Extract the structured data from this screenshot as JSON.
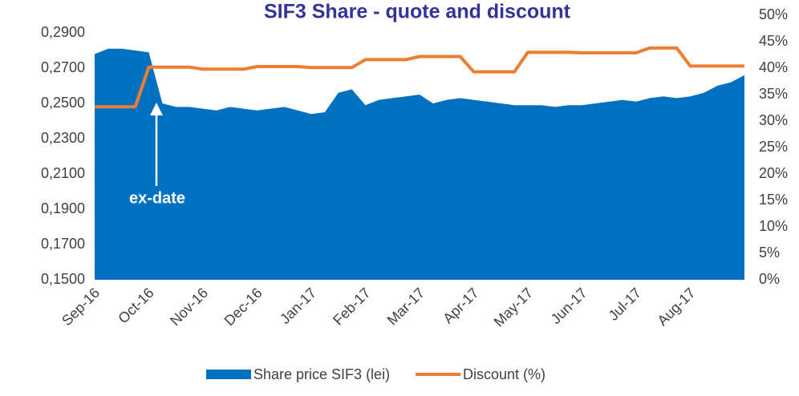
{
  "chart_data": {
    "type": "area-line",
    "title": "SIF3 Share - quote and discount",
    "annotation": "ex-date",
    "categories": [
      "Sep-16",
      null,
      null,
      null,
      "Oct-16",
      null,
      null,
      null,
      "Nov-16",
      null,
      null,
      null,
      "Dec-16",
      null,
      null,
      null,
      "Jan-17",
      null,
      null,
      null,
      "Feb-17",
      null,
      null,
      null,
      "Mar-17",
      null,
      null,
      null,
      "Apr-17",
      null,
      null,
      null,
      "May-17",
      null,
      null,
      null,
      "Jun-17",
      null,
      null,
      null,
      "Jul-17",
      null,
      null,
      null,
      "Aug-17",
      null,
      null,
      null,
      null
    ],
    "series": [
      {
        "name": "Share price SIF3 (lei)",
        "color": "#0070c0",
        "axis": "y",
        "values": [
          0.278,
          0.281,
          0.281,
          0.28,
          0.279,
          0.25,
          0.248,
          0.248,
          0.247,
          0.246,
          0.248,
          0.247,
          0.246,
          0.247,
          0.248,
          0.246,
          0.244,
          0.245,
          0.256,
          0.258,
          0.249,
          0.252,
          0.253,
          0.254,
          0.255,
          0.25,
          0.252,
          0.253,
          0.252,
          0.251,
          0.25,
          0.249,
          0.249,
          0.249,
          0.248,
          0.249,
          0.249,
          0.25,
          0.251,
          0.252,
          0.251,
          0.253,
          0.254,
          0.253,
          0.254,
          0.256,
          0.26,
          0.262,
          0.266
        ]
      },
      {
        "name": "Discount (%)",
        "color": "#ed7d31",
        "axis": "y2",
        "values": [
          32.7,
          32.7,
          32.7,
          32.7,
          40.2,
          40.2,
          40.2,
          40.2,
          39.8,
          39.8,
          39.8,
          39.8,
          40.3,
          40.3,
          40.3,
          40.3,
          40.1,
          40.1,
          40.1,
          40.1,
          41.6,
          41.6,
          41.6,
          41.6,
          42.2,
          42.2,
          42.2,
          42.2,
          39.3,
          39.3,
          39.3,
          39.3,
          43.0,
          43.0,
          43.0,
          43.0,
          42.9,
          42.9,
          42.9,
          42.9,
          42.9,
          43.8,
          43.8,
          43.8,
          40.4,
          40.4,
          40.4,
          40.4,
          40.4
        ]
      }
    ],
    "ylim": [
      0.15,
      0.29
    ],
    "yticks": [
      {
        "value": 0.15,
        "label": "0,1500"
      },
      {
        "value": 0.17,
        "label": "0,1700"
      },
      {
        "value": 0.19,
        "label": "0,1900"
      },
      {
        "value": 0.21,
        "label": "0,2100"
      },
      {
        "value": 0.23,
        "label": "0,2300"
      },
      {
        "value": 0.25,
        "label": "0,2500"
      },
      {
        "value": 0.27,
        "label": "0,2700"
      },
      {
        "value": 0.29,
        "label": "0,2900"
      }
    ],
    "y2lim": [
      0,
      50
    ],
    "y2ticks": [
      {
        "value": 0,
        "label": "0%"
      },
      {
        "value": 5,
        "label": "5%"
      },
      {
        "value": 10,
        "label": "10%"
      },
      {
        "value": 15,
        "label": "15%"
      },
      {
        "value": 20,
        "label": "20%"
      },
      {
        "value": 25,
        "label": "25%"
      },
      {
        "value": 30,
        "label": "30%"
      },
      {
        "value": 35,
        "label": "35%"
      },
      {
        "value": 40,
        "label": "40%"
      },
      {
        "value": 45,
        "label": "45%"
      },
      {
        "value": 50,
        "label": "50%"
      }
    ],
    "legend": "bottom"
  }
}
